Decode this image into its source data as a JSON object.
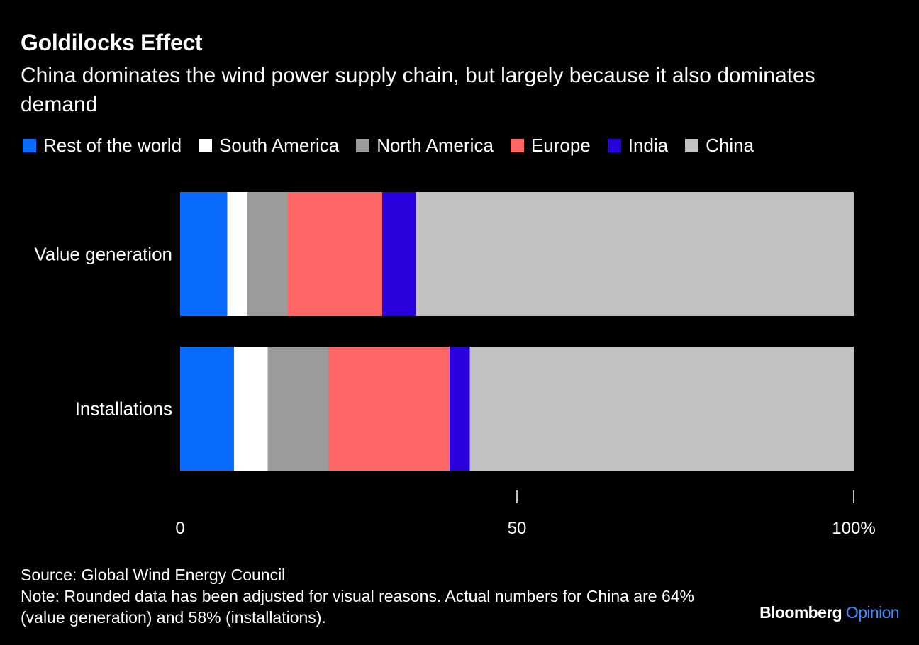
{
  "chart_data": {
    "type": "bar",
    "orientation": "horizontal",
    "stacked": true,
    "title": "Goldilocks Effect",
    "subtitle": "China dominates the wind power supply chain, but largely because it also dominates demand",
    "categories": [
      "Value generation",
      "Installations"
    ],
    "series": [
      {
        "name": "Rest of the world",
        "color": "#0a6cff",
        "values": [
          7,
          8
        ]
      },
      {
        "name": "South America",
        "color": "#ffffff",
        "values": [
          3,
          5
        ]
      },
      {
        "name": "North America",
        "color": "#9b9b9b",
        "values": [
          6,
          9
        ]
      },
      {
        "name": "Europe",
        "color": "#ff6666",
        "values": [
          14,
          18
        ]
      },
      {
        "name": "India",
        "color": "#2a00dc",
        "values": [
          5,
          3
        ]
      },
      {
        "name": "China",
        "color": "#c1c1c1",
        "values": [
          65,
          57
        ]
      }
    ],
    "xlim": [
      0,
      100
    ],
    "xticks": [
      {
        "value": 0,
        "label": "0"
      },
      {
        "value": 50,
        "label": "50"
      },
      {
        "value": 100,
        "label": "100%"
      }
    ],
    "legend_position": "top-left"
  },
  "footer": {
    "source": "Source: Global Wind Energy Council",
    "note": "Note: Rounded data has been adjusted for visual reasons. Actual numbers for China are 64% (value generation) and 58% (installations).",
    "brand_primary": "Bloomberg",
    "brand_secondary": "Opinion"
  }
}
